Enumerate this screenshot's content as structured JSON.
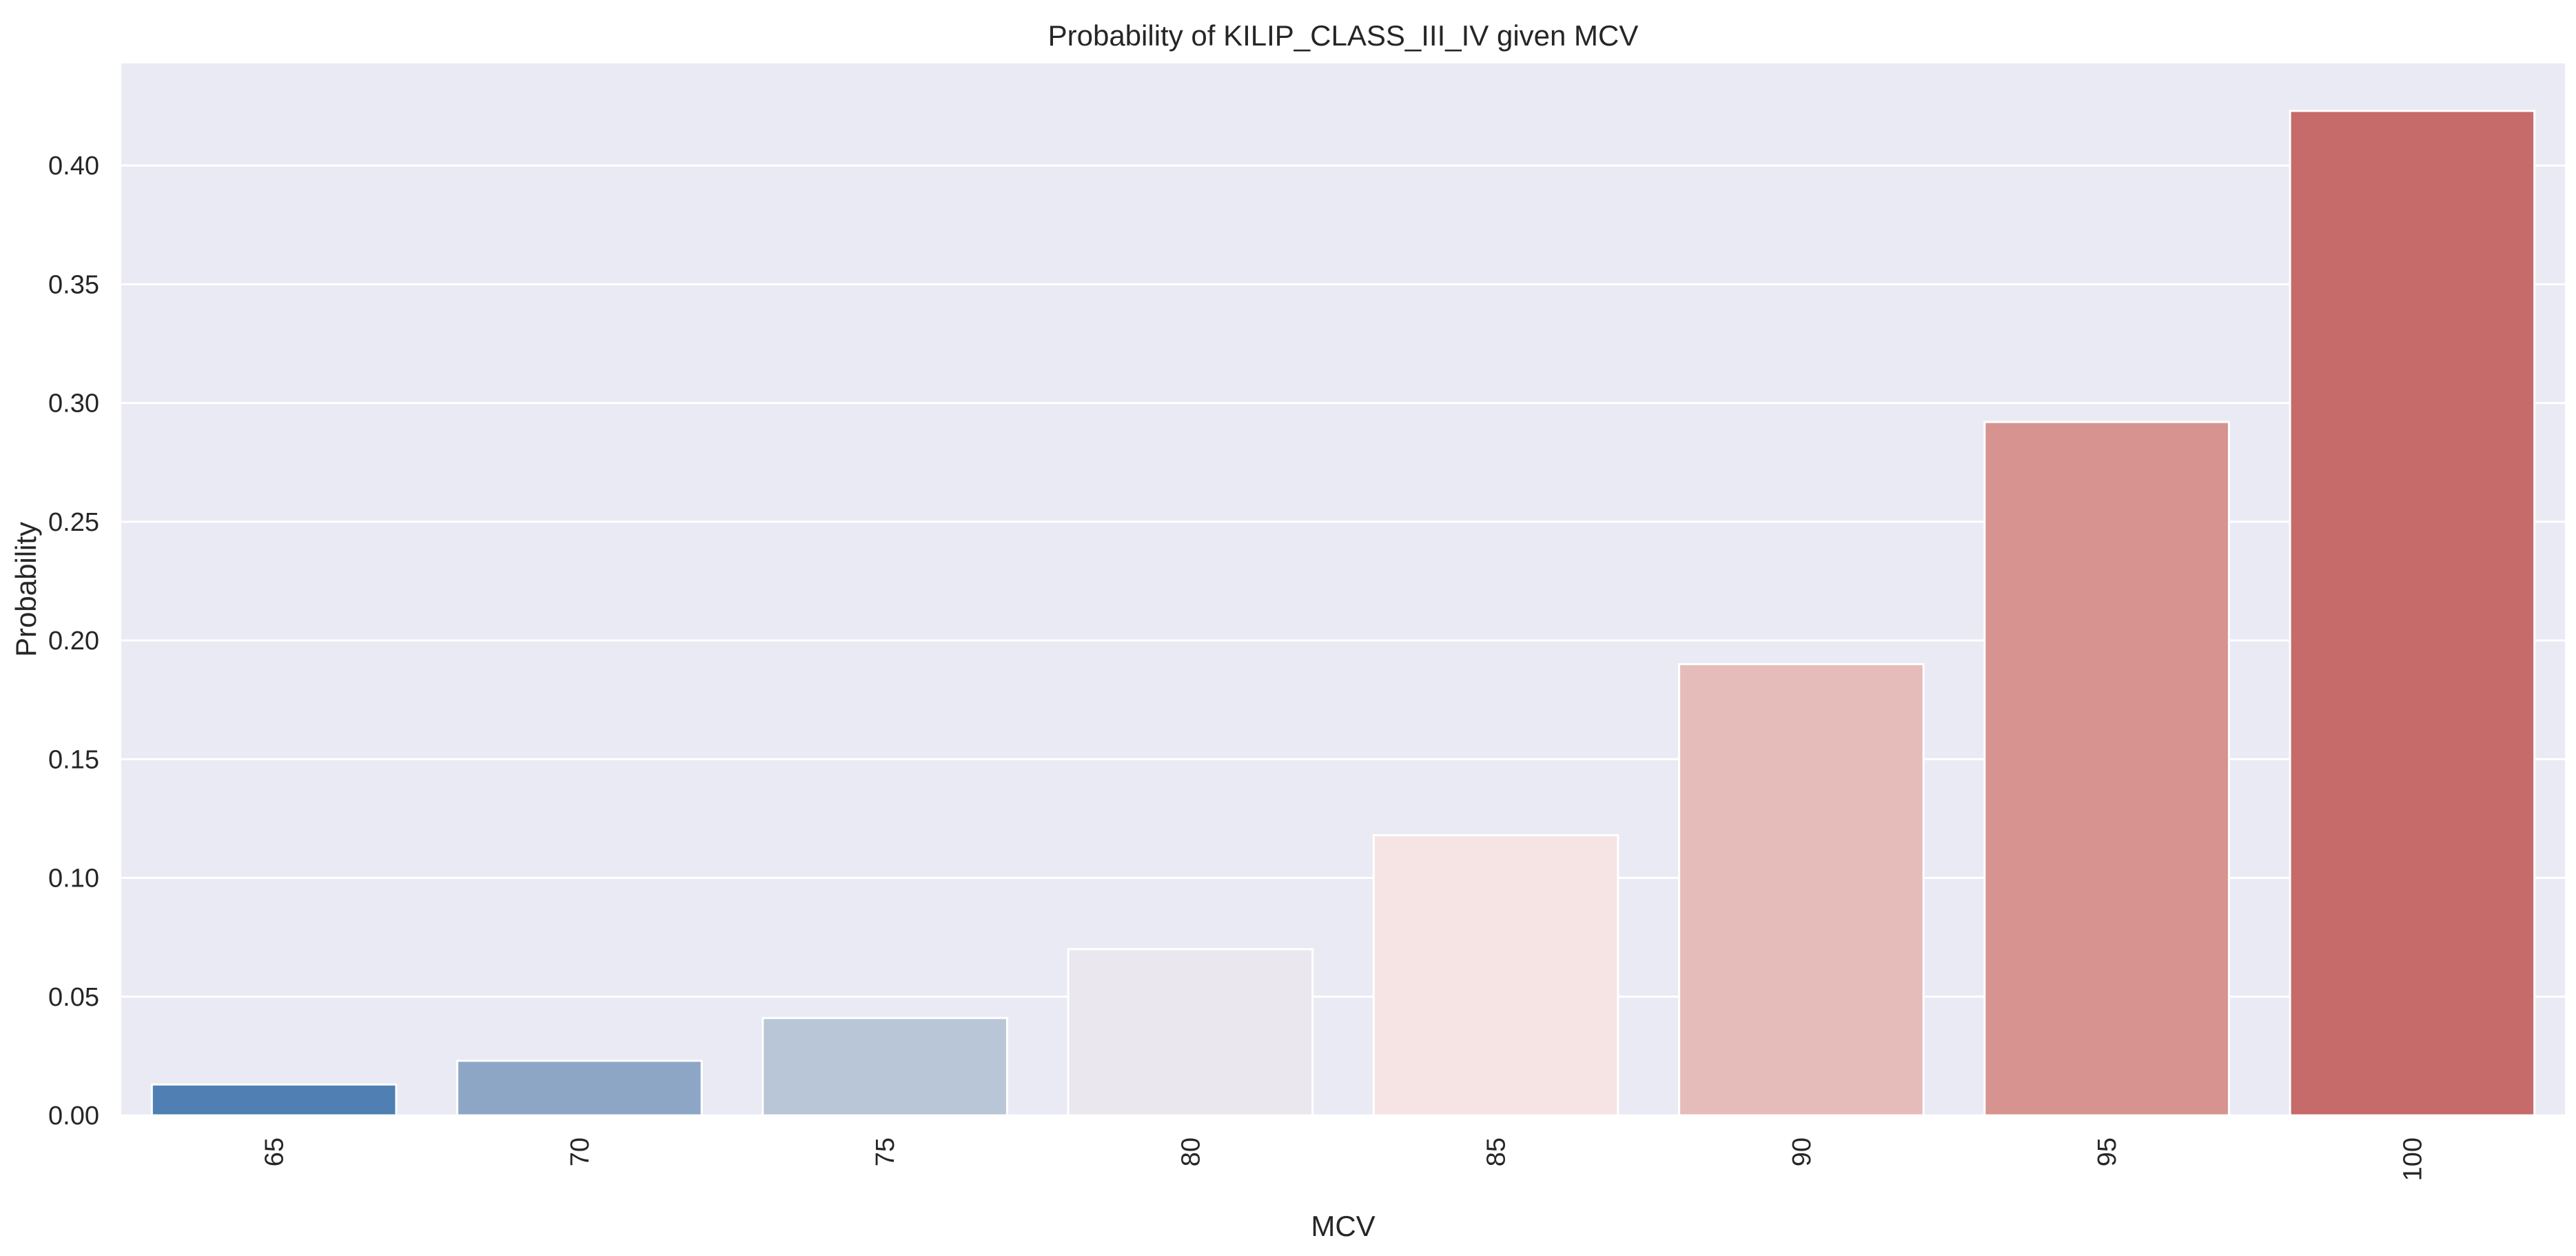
{
  "chart_data": {
    "type": "bar",
    "title": "Probability of KILIP_CLASS_III_IV given MCV",
    "xlabel": "MCV",
    "ylabel": "Probability",
    "categories": [
      "65",
      "70",
      "75",
      "80",
      "85",
      "90",
      "95",
      "100"
    ],
    "values": [
      0.013,
      0.023,
      0.041,
      0.07,
      0.118,
      0.19,
      0.292,
      0.423
    ],
    "colors": [
      "#4f7fb3",
      "#8ea6c6",
      "#b9c6d7",
      "#eae7ee",
      "#f6e4e5",
      "#e5bcba",
      "#d69390",
      "#c66a6a"
    ],
    "ylim": [
      0,
      0.443
    ],
    "yticks": [
      0.0,
      0.05,
      0.1,
      0.15,
      0.2,
      0.25,
      0.3,
      0.35,
      0.4
    ],
    "ytick_labels": [
      "0.00",
      "0.05",
      "0.10",
      "0.15",
      "0.20",
      "0.25",
      "0.30",
      "0.35",
      "0.40"
    ],
    "x_tick_rotation": "vertical",
    "grid": true,
    "background": "#e9eaf3",
    "grid_color": "#ffffff"
  }
}
